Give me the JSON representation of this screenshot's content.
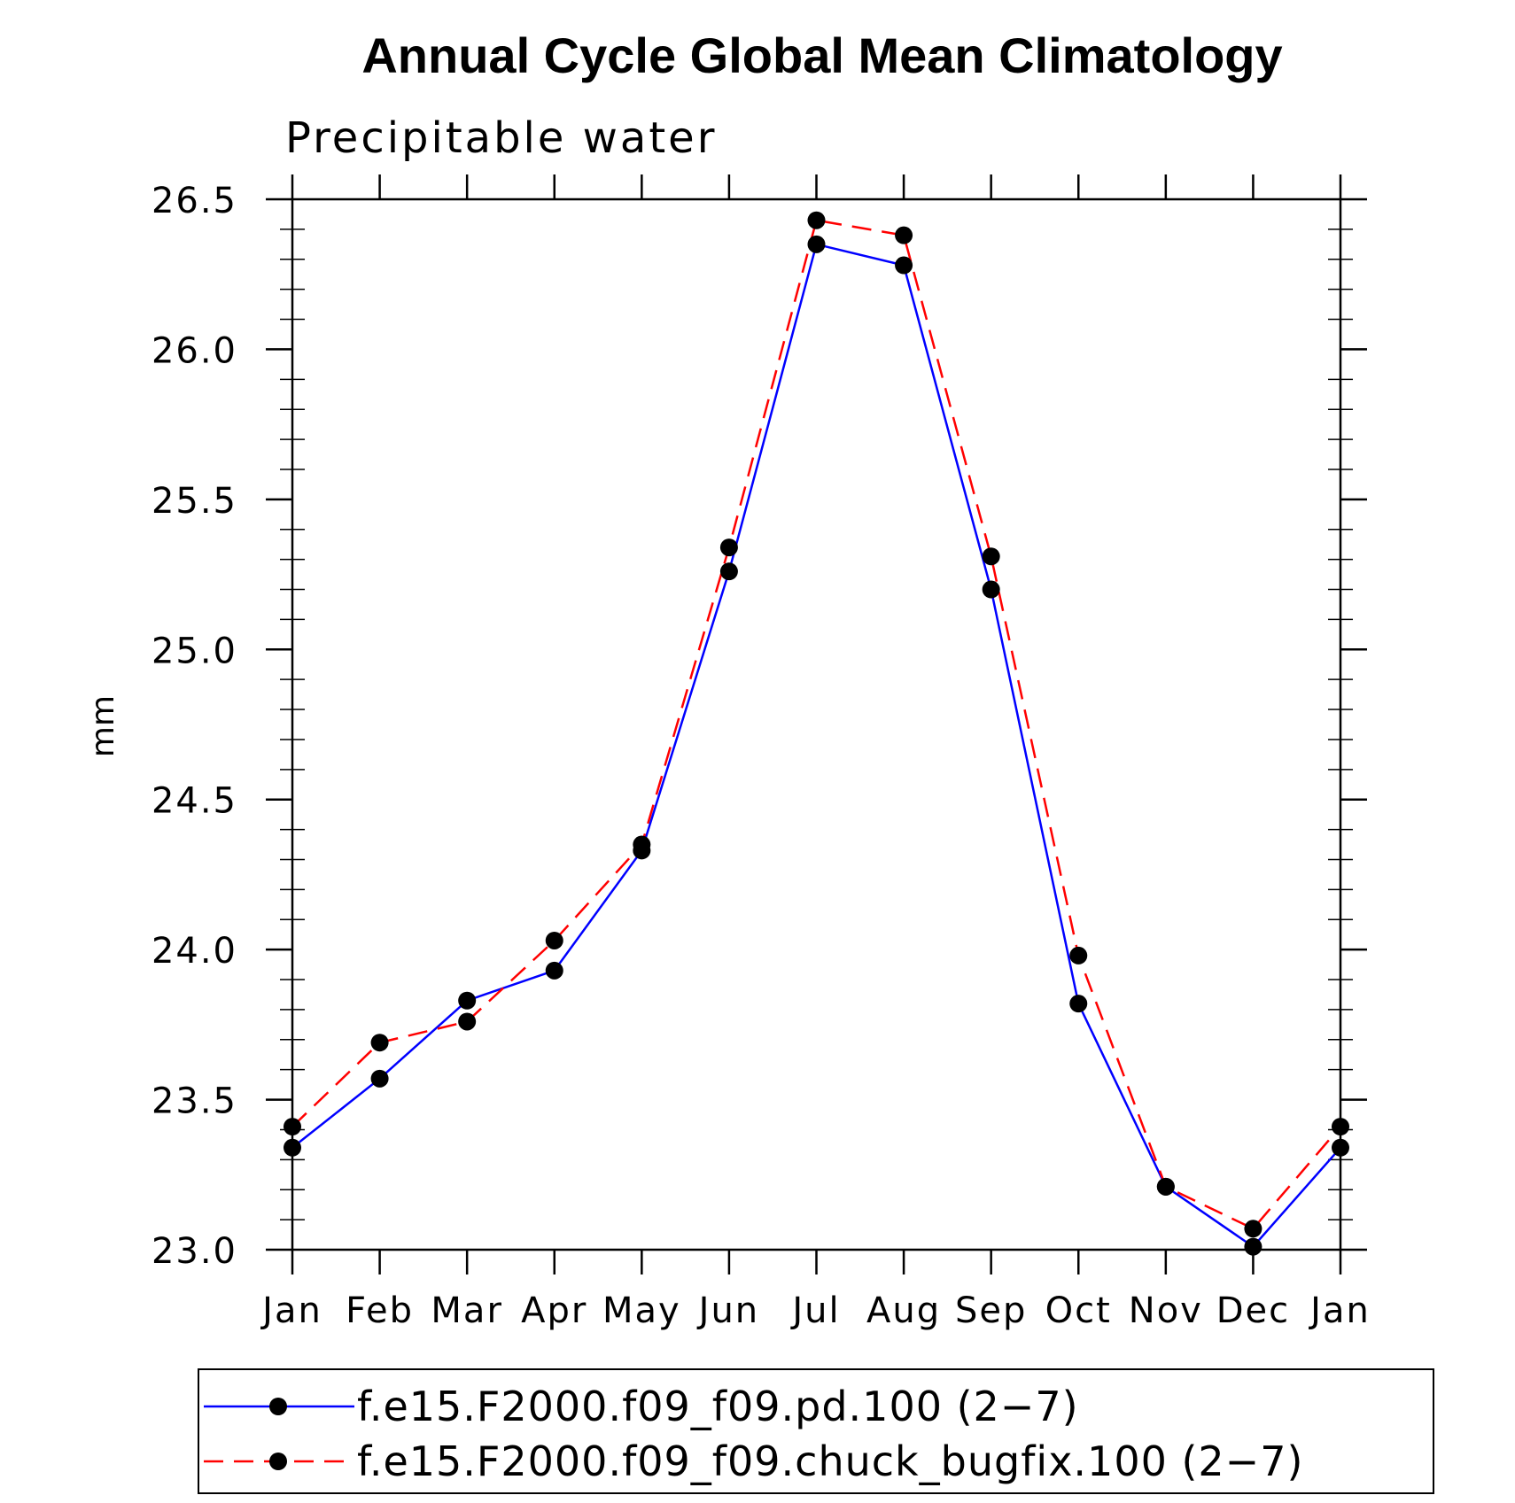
{
  "chart_data": {
    "type": "line",
    "title": "Annual Cycle Global Mean Climatology",
    "subtitle": "Precipitable water",
    "xlabel": "",
    "ylabel": "mm",
    "categories": [
      "Jan",
      "Feb",
      "Mar",
      "Apr",
      "May",
      "Jun",
      "Jul",
      "Aug",
      "Sep",
      "Oct",
      "Nov",
      "Dec",
      "Jan"
    ],
    "ylim": [
      23.0,
      26.5
    ],
    "yticks": [
      "23.0",
      "23.5",
      "24.0",
      "24.5",
      "25.0",
      "25.5",
      "26.0",
      "26.5"
    ],
    "grid": false,
    "legend_position": "bottom",
    "series": [
      {
        "name": "f.e15.F2000.f09_f09.pd.100 (2−7)",
        "color": "#0000ff",
        "dash": "solid",
        "marker": "filled-circle",
        "values": [
          23.34,
          23.57,
          23.83,
          23.93,
          24.33,
          25.26,
          26.35,
          26.28,
          25.2,
          23.82,
          23.21,
          23.01,
          23.34
        ]
      },
      {
        "name": "f.e15.F2000.f09_f09.chuck_bugfix.100 (2−7)",
        "color": "#ff0000",
        "dash": "dashed",
        "marker": "filled-circle",
        "values": [
          23.41,
          23.69,
          23.76,
          24.03,
          24.35,
          25.34,
          26.43,
          26.38,
          25.31,
          23.98,
          23.21,
          23.07,
          23.41
        ]
      }
    ]
  }
}
